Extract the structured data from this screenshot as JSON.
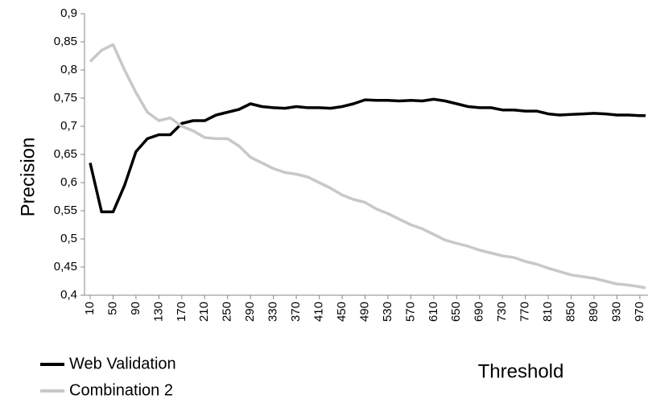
{
  "chart_data": {
    "type": "line",
    "y_label": "Precision",
    "x_label": "Threshold",
    "x": [
      10,
      30,
      50,
      70,
      90,
      110,
      130,
      150,
      170,
      190,
      210,
      230,
      250,
      270,
      290,
      310,
      330,
      350,
      370,
      390,
      410,
      430,
      450,
      470,
      490,
      510,
      530,
      550,
      570,
      590,
      610,
      630,
      650,
      670,
      690,
      710,
      730,
      750,
      770,
      790,
      810,
      830,
      850,
      870,
      890,
      910,
      930,
      950,
      970,
      980
    ],
    "series": [
      {
        "name": "Web Validation",
        "color": "#000000",
        "values": [
          0.635,
          0.548,
          0.548,
          0.595,
          0.655,
          0.678,
          0.685,
          0.685,
          0.705,
          0.71,
          0.71,
          0.72,
          0.725,
          0.73,
          0.74,
          0.735,
          0.733,
          0.732,
          0.735,
          0.733,
          0.733,
          0.732,
          0.735,
          0.74,
          0.747,
          0.746,
          0.746,
          0.745,
          0.746,
          0.745,
          0.748,
          0.745,
          0.74,
          0.735,
          0.733,
          0.733,
          0.729,
          0.729,
          0.727,
          0.727,
          0.722,
          0.72,
          0.721,
          0.722,
          0.723,
          0.722,
          0.72,
          0.72,
          0.719,
          0.719
        ]
      },
      {
        "name": "Combination 2",
        "color": "#c8c8c8",
        "values": [
          0.815,
          0.835,
          0.845,
          0.8,
          0.76,
          0.725,
          0.71,
          0.715,
          0.7,
          0.692,
          0.68,
          0.678,
          0.678,
          0.665,
          0.645,
          0.635,
          0.625,
          0.618,
          0.615,
          0.61,
          0.6,
          0.59,
          0.578,
          0.57,
          0.565,
          0.553,
          0.545,
          0.535,
          0.525,
          0.518,
          0.508,
          0.498,
          0.492,
          0.487,
          0.48,
          0.475,
          0.47,
          0.467,
          0.46,
          0.455,
          0.448,
          0.442,
          0.436,
          0.433,
          0.43,
          0.425,
          0.42,
          0.418,
          0.415,
          0.413
        ]
      }
    ],
    "xlim": [
      10,
      980
    ],
    "xticks": [
      10,
      50,
      90,
      130,
      170,
      210,
      250,
      290,
      330,
      370,
      410,
      450,
      490,
      530,
      570,
      610,
      650,
      690,
      730,
      770,
      810,
      850,
      890,
      930,
      970
    ],
    "ylim": [
      0.4,
      0.9
    ],
    "yticks": [
      {
        "value": 0.4,
        "label": "0,4"
      },
      {
        "value": 0.45,
        "label": "0,45"
      },
      {
        "value": 0.5,
        "label": "0,5"
      },
      {
        "value": 0.55,
        "label": "0,55"
      },
      {
        "value": 0.6,
        "label": "0,6"
      },
      {
        "value": 0.65,
        "label": "0,65"
      },
      {
        "value": 0.7,
        "label": "0,7"
      },
      {
        "value": 0.75,
        "label": "0,75"
      },
      {
        "value": 0.8,
        "label": "0,8"
      },
      {
        "value": 0.85,
        "label": "0,85"
      },
      {
        "value": 0.9,
        "label": "0,9"
      }
    ]
  }
}
